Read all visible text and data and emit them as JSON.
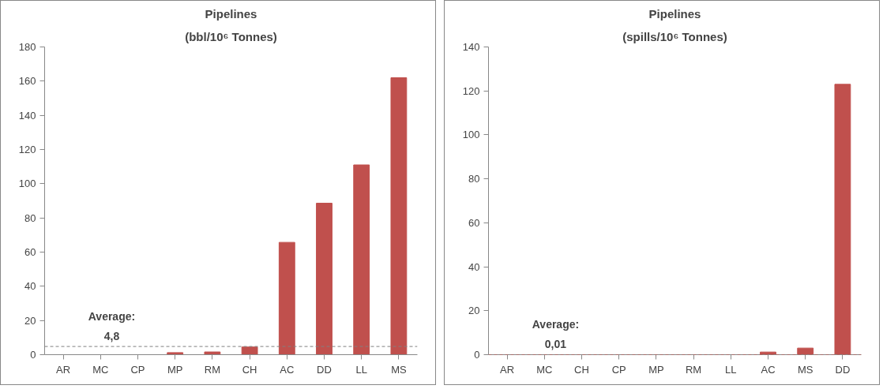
{
  "chart_data": [
    {
      "type": "bar",
      "title": "Pipelines",
      "subtitle": "(bbl/10⁶ Tonnes)",
      "categories": [
        "AR",
        "MC",
        "CP",
        "MP",
        "RM",
        "CH",
        "AC",
        "DD",
        "LL",
        "MS"
      ],
      "values": [
        0,
        0,
        0,
        1.2,
        1.6,
        4.5,
        65.7,
        88.6,
        111,
        162
      ],
      "color": "#c0504d",
      "ylim": [
        0,
        180
      ],
      "yticks": [
        0,
        20,
        40,
        60,
        80,
        100,
        120,
        140,
        160,
        180
      ],
      "grid": false,
      "ref_lines": [
        {
          "axis": "y",
          "value": 4.8,
          "label": "Average:\n4,8",
          "color": "#808080",
          "line_style": "dashed"
        }
      ]
    },
    {
      "type": "bar",
      "title": "Pipelines",
      "subtitle": "(spills/10⁶ Tonnes)",
      "categories": [
        "AR",
        "MC",
        "CH",
        "CP",
        "MP",
        "RM",
        "LL",
        "AC",
        "MS",
        "DD"
      ],
      "values": [
        0,
        0,
        0,
        0,
        0,
        0,
        0,
        1.2,
        3,
        123
      ],
      "color": "#c0504d",
      "ylim": [
        0,
        140
      ],
      "yticks": [
        0,
        20,
        40,
        60,
        80,
        100,
        120,
        140
      ],
      "grid": false,
      "ref_lines": [
        {
          "axis": "y",
          "value": 0.01,
          "label": "Average:\n0,01",
          "color": "#c0504d",
          "line_style": "dashed"
        }
      ]
    }
  ]
}
